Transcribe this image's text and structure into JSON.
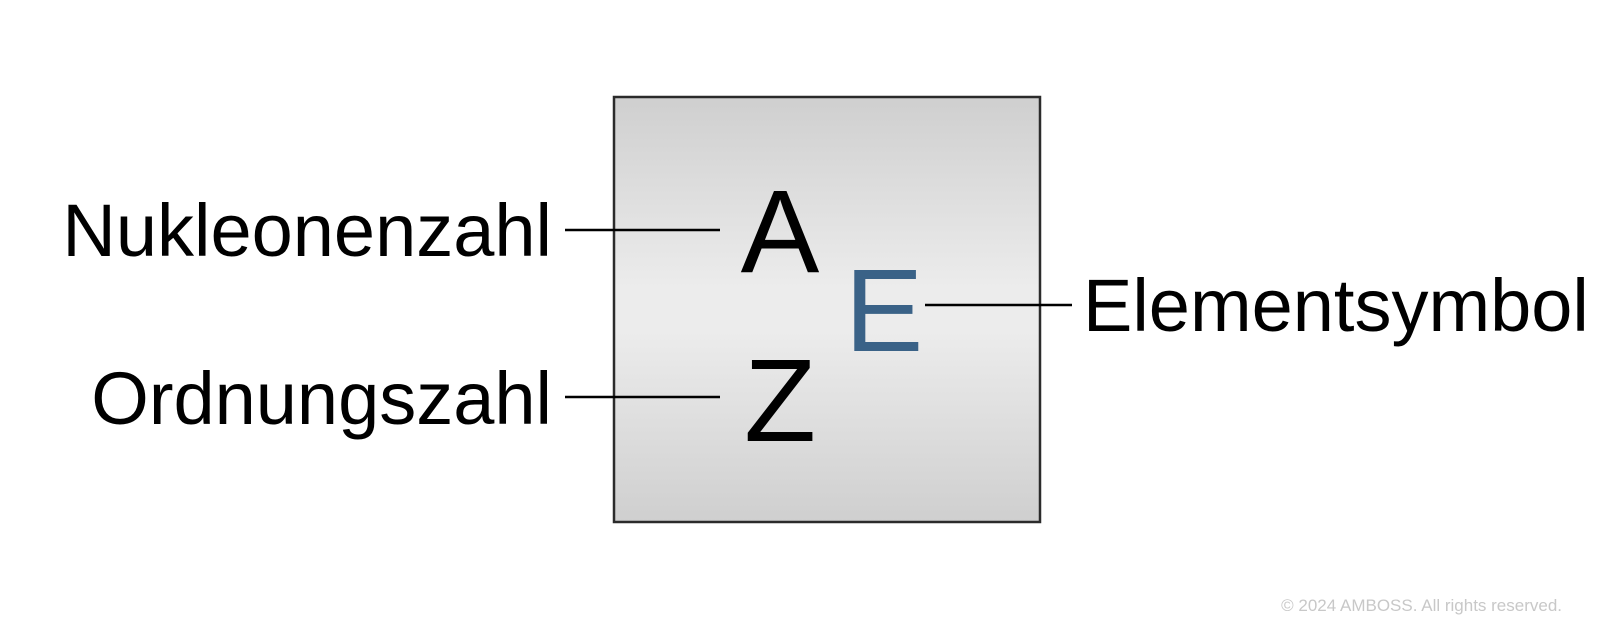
{
  "labels": {
    "nucleon_number": "Nukleonenzahl",
    "atomic_number": "Ordnungszahl",
    "element_symbol": "Elementsymbol"
  },
  "nuclide": {
    "mass_symbol": "A",
    "atomic_symbol": "Z",
    "element_symbol": "E"
  },
  "colors": {
    "element_symbol": "#3a6287",
    "box_edge": "#cfcfcf",
    "box_center": "#ececec",
    "box_border": "#2b2b2b"
  },
  "copyright": "© 2024 AMBOSS. All rights reserved."
}
